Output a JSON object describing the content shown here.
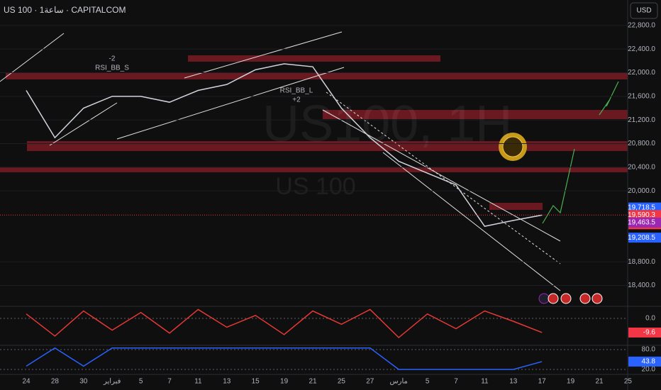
{
  "header": {
    "title": "US 100 · 1ساعة · CAPITALCOM",
    "currency_button": "USD"
  },
  "chart_data": [
    {
      "type": "line",
      "watermark": "US100, 1H",
      "watermark_sub": "US 100",
      "annotations": [
        "-2",
        "RSI_BB_S",
        "RSI_BB_L",
        "+2"
      ],
      "x": [
        "24",
        "28",
        "30",
        "فبراير",
        "5",
        "7",
        "11",
        "13",
        "15",
        "19",
        "21",
        "25",
        "27",
        "مارس",
        "5",
        "7",
        "11",
        "13",
        "17",
        "19",
        "21",
        "25"
      ],
      "values": [
        21700,
        20900,
        21400,
        21600,
        21600,
        21500,
        21700,
        21800,
        22050,
        22150,
        22100,
        21400,
        20900,
        20500,
        20300,
        20100,
        19400,
        19500,
        19590,
        null,
        null,
        null
      ],
      "color": "#d1d4dc",
      "ylim": [
        18070,
        23230
      ],
      "yticks": [
        {
          "value": 22800,
          "label": "22,800.0"
        },
        {
          "value": 22400,
          "label": "22,400.0"
        },
        {
          "value": 22000,
          "label": "22,000.0"
        },
        {
          "value": 21600,
          "label": "21,600.0"
        },
        {
          "value": 21200,
          "label": "21,200.0"
        },
        {
          "value": 20800,
          "label": "20,800.0"
        },
        {
          "value": 20400,
          "label": "20,400.0"
        },
        {
          "value": 20000,
          "label": "20,000.0"
        },
        {
          "value": 18800,
          "label": "18,800.0"
        },
        {
          "value": 18400,
          "label": "18,400.0"
        }
      ],
      "price_tags": [
        {
          "value": 19718.5,
          "label": "19,718.5",
          "color": "#2962ff"
        },
        {
          "value": 19590.3,
          "label": "19,590.3",
          "color": "#f23645"
        },
        {
          "value": 19463.5,
          "label": "19,463.5",
          "color": "#9c27b0"
        },
        {
          "value": 19208.5,
          "label": "19,208.5",
          "color": "#2962ff"
        }
      ],
      "countdown": "25:25"
    },
    {
      "type": "line",
      "values": [
        3,
        -12,
        5,
        -8,
        4,
        -10,
        6,
        -6,
        2,
        -11,
        5,
        -4,
        6,
        -13,
        3,
        -7,
        5,
        -2,
        -9.6,
        null,
        null,
        null
      ],
      "color": "#e53935",
      "ylim": [
        -17.3,
        6.7
      ],
      "yticks": [
        {
          "value": 0,
          "label": "0.0"
        }
      ],
      "price_tags": [
        {
          "value": -9.6,
          "label": "-9.6",
          "color": "#f23645"
        }
      ]
    },
    {
      "type": "line",
      "values": [
        30,
        85,
        30,
        85,
        85,
        85,
        85,
        85,
        85,
        85,
        85,
        85,
        85,
        20,
        20,
        20,
        20,
        20,
        43.8,
        null,
        null,
        null
      ],
      "color": "#2962ff",
      "ylim": [
        5,
        93
      ],
      "yticks": [
        {
          "value": 80,
          "label": "80.0"
        },
        {
          "value": 20,
          "label": "20.0"
        }
      ],
      "price_tags": [
        {
          "value": 43.8,
          "label": "43.8",
          "color": "#2962ff"
        }
      ]
    }
  ]
}
